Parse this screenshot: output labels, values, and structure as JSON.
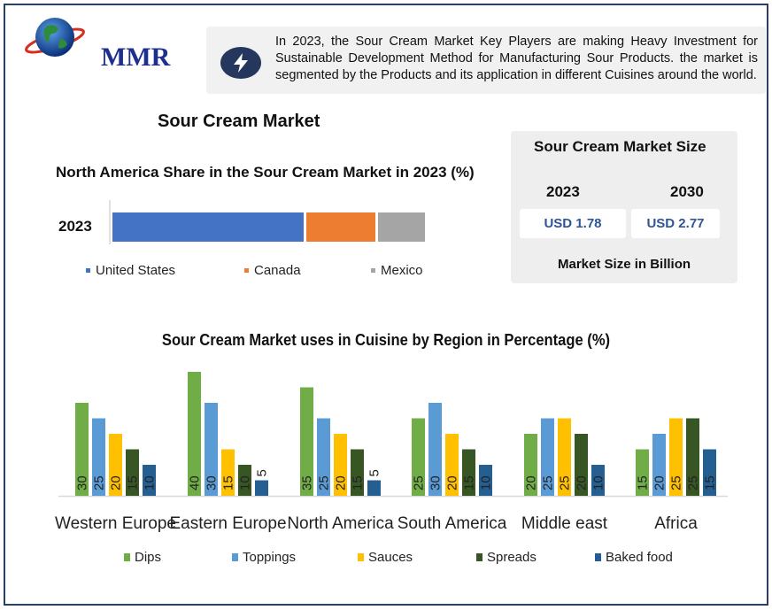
{
  "brand": {
    "logo_text": "MMR"
  },
  "banner": {
    "text": "In 2023, the Sour Cream Market Key Players are making Heavy Investment for Sustainable Development Method for Manufacturing Sour Products. the market is segmented by the Products and its application in different Cuisines around the world.",
    "icon": "lightning-icon"
  },
  "main_title": "Sour Cream Market",
  "market_size": {
    "title": "Sour Cream Market Size",
    "years": [
      "2023",
      "2030"
    ],
    "values": [
      "USD 1.78",
      "USD 2.77"
    ],
    "unit_label": "Market Size in Billion"
  },
  "chart_data": [
    {
      "type": "bar",
      "orientation": "horizontal-stacked",
      "title": "North America Share in the Sour Cream Market in 2023 (%)",
      "categories": [
        "2023"
      ],
      "series": [
        {
          "name": "United States",
          "values": [
            62
          ],
          "color": "#4472c4"
        },
        {
          "name": "Canada",
          "values": [
            23
          ],
          "color": "#ed7d31"
        },
        {
          "name": "Mexico",
          "values": [
            15
          ],
          "color": "#a5a5a5"
        }
      ],
      "legend": "bottom"
    },
    {
      "type": "bar",
      "title": "Sour Cream Market uses in Cuisine by Region in Percentage (%)",
      "categories": [
        "Western Europe",
        "Eastern Europe",
        "North America",
        "South America",
        "Middle east",
        "Africa"
      ],
      "series": [
        {
          "name": "Dips",
          "values": [
            30,
            40,
            35,
            25,
            20,
            15
          ],
          "color": "#70ad47"
        },
        {
          "name": "Toppings",
          "values": [
            25,
            30,
            25,
            30,
            25,
            20
          ],
          "color": "#5b9bd5"
        },
        {
          "name": "Sauces",
          "values": [
            20,
            15,
            20,
            20,
            25,
            25
          ],
          "color": "#ffc000"
        },
        {
          "name": "Spreads",
          "values": [
            15,
            10,
            15,
            15,
            20,
            25
          ],
          "color": "#375623"
        },
        {
          "name": "Baked food",
          "values": [
            10,
            5,
            5,
            10,
            10,
            15
          ],
          "color": "#255e91"
        }
      ],
      "ylim": [
        0,
        40
      ],
      "legend": "bottom"
    }
  ]
}
